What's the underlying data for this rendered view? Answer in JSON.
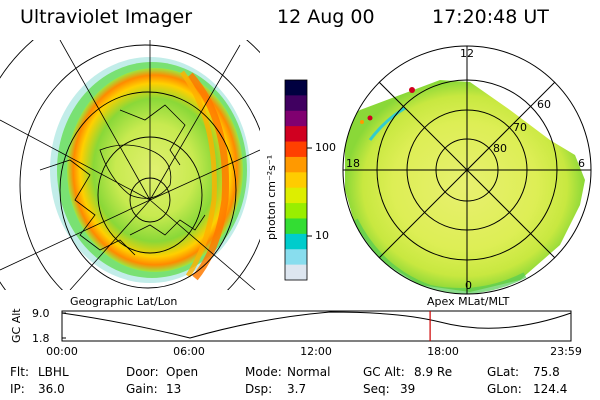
{
  "header": {
    "instrument": "Ultraviolet Imager",
    "date": "12 Aug 00",
    "time": "17:20:48 UT"
  },
  "colorbar": {
    "unit_label": "photon cm⁻²s⁻¹",
    "ticks": [
      "100",
      "10"
    ],
    "colors": [
      "#000040",
      "#400060",
      "#800070",
      "#d00020",
      "#ff4000",
      "#ff9900",
      "#ffcc00",
      "#ddee00",
      "#99ee00",
      "#33dd33",
      "#00cccc",
      "#88ddee",
      "#dde6f0"
    ]
  },
  "left_panel": {
    "label": "Geographic Lat/Lon"
  },
  "right_panel": {
    "label": "Apex MLat/MLT",
    "lat_labels": [
      "60",
      "70",
      "80"
    ],
    "mlt_labels": {
      "top": "12",
      "left": "18",
      "right": "6",
      "bottom": "0"
    }
  },
  "timeline": {
    "ylabel": "GC Alt",
    "y_ticks": [
      "9.0",
      "1.8"
    ],
    "x_ticks": [
      "00:00",
      "06:00",
      "12:00",
      "18:00",
      "23:59"
    ],
    "marker_time": "17:20:48",
    "marker_color": "#cc0000"
  },
  "status": {
    "flt": {
      "label": "Flt:",
      "value": "LBHL"
    },
    "door": {
      "label": "Door:",
      "value": "Open"
    },
    "mode": {
      "label": "Mode:",
      "value": "Normal"
    },
    "gc_alt": {
      "label": "GC Alt:",
      "value": "8.9 Re"
    },
    "glat": {
      "label": "GLat:",
      "value": "75.8"
    },
    "ip": {
      "label": "IP:",
      "value": "36.0"
    },
    "gain": {
      "label": "Gain:",
      "value": "13"
    },
    "dsp": {
      "label": "Dsp:",
      "value": "3.7"
    },
    "seq": {
      "label": "Seq:",
      "value": "39"
    },
    "glon": {
      "label": "GLon:",
      "value": "124.4"
    }
  }
}
